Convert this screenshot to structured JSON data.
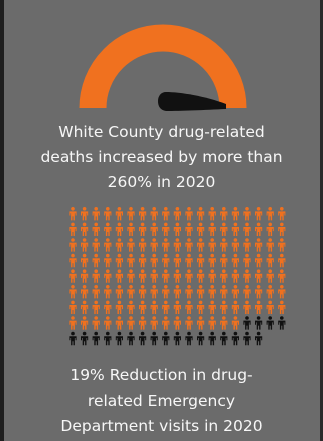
{
  "gauge": {
    "accent_color": "#f0711f",
    "needle_color": "#111111",
    "needle_icon": "needle-icon"
  },
  "deaths_stat": {
    "lines": [
      "White County drug-related",
      "deaths increased by more than",
      "260% in 2020"
    ]
  },
  "icon_array": {
    "icon": "person-icon",
    "rows": 9,
    "orange_color": "#f0711f",
    "black_color": "#111111",
    "row_counts": [
      19,
      19,
      19,
      19,
      19,
      19,
      19,
      19,
      17
    ],
    "black_start_in_row_8": 15
  },
  "ed_stat": {
    "lines": [
      "19% Reduction in drug-",
      "related Emergency",
      "Department visits in 2020"
    ]
  }
}
